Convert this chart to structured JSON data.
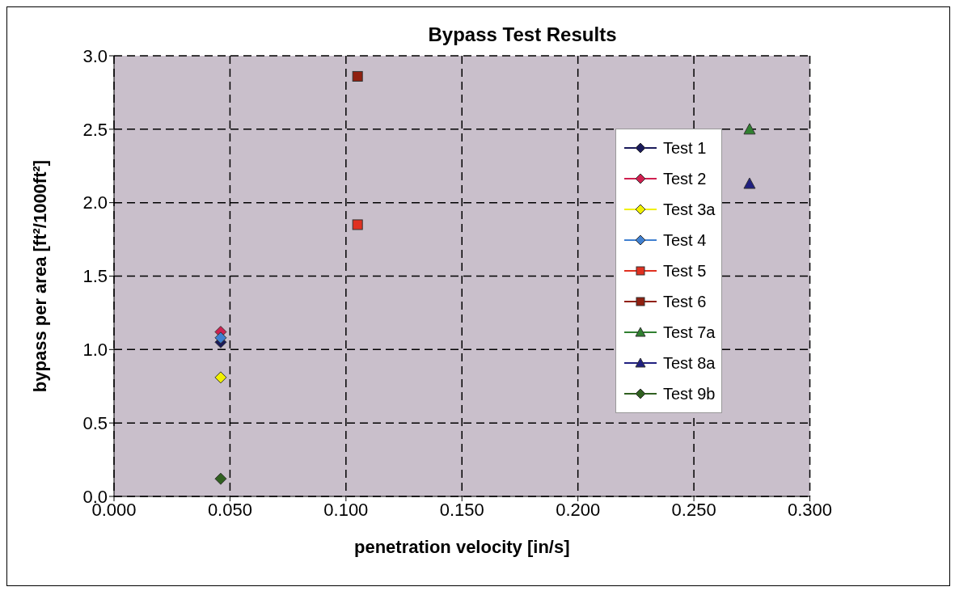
{
  "chart_data": {
    "type": "scatter",
    "title": "Bypass Test Results",
    "xlabel": "penetration velocity [in/s]",
    "ylabel": "bypass per area [ft²/1000ft²]",
    "xlim": [
      0,
      0.3
    ],
    "xticks": [
      {
        "value": 0,
        "label": "0.000"
      },
      {
        "value": 0.05,
        "label": "0.050"
      },
      {
        "value": 0.1,
        "label": "0.100"
      },
      {
        "value": 0.15,
        "label": "0.150"
      },
      {
        "value": 0.2,
        "label": "0.200"
      },
      {
        "value": 0.25,
        "label": "0.250"
      },
      {
        "value": 0.3,
        "label": "0.300"
      }
    ],
    "ylim": [
      0,
      3
    ],
    "yticks": [
      {
        "value": 0,
        "label": "0.0"
      },
      {
        "value": 0.5,
        "label": "0.5"
      },
      {
        "value": 1,
        "label": "1.0"
      },
      {
        "value": 1.5,
        "label": "1.5"
      },
      {
        "value": 2,
        "label": "2.0"
      },
      {
        "value": 2.5,
        "label": "2.5"
      },
      {
        "value": 3,
        "label": "3.0"
      }
    ],
    "grid": true,
    "legend": "right",
    "series": [
      {
        "name": "Test 1",
        "color": "#1a1a5a",
        "marker": "diamond",
        "x": [
          0.046
        ],
        "values": [
          1.05
        ]
      },
      {
        "name": "Test 2",
        "color": "#d02050",
        "marker": "diamond",
        "x": [
          0.046
        ],
        "values": [
          1.12
        ]
      },
      {
        "name": "Test 3a",
        "color": "#f0f000",
        "marker": "diamond",
        "x": [
          0.046
        ],
        "values": [
          0.81
        ]
      },
      {
        "name": "Test 4",
        "color": "#4080d0",
        "marker": "diamond",
        "x": [
          0.046
        ],
        "values": [
          1.08
        ]
      },
      {
        "name": "Test 5",
        "color": "#e03020",
        "marker": "square",
        "x": [
          0.105
        ],
        "values": [
          1.85
        ]
      },
      {
        "name": "Test 6",
        "color": "#902010",
        "marker": "square",
        "x": [
          0.105
        ],
        "values": [
          2.86
        ]
      },
      {
        "name": "Test 7a",
        "color": "#308030",
        "marker": "triangle",
        "x": [
          0.274
        ],
        "values": [
          2.5
        ]
      },
      {
        "name": "Test 8a",
        "color": "#202080",
        "marker": "triangle",
        "x": [
          0.274
        ],
        "values": [
          2.13
        ]
      },
      {
        "name": "Test 9b",
        "color": "#306020",
        "marker": "diamond",
        "x": [
          0.046
        ],
        "values": [
          0.12
        ]
      }
    ]
  }
}
